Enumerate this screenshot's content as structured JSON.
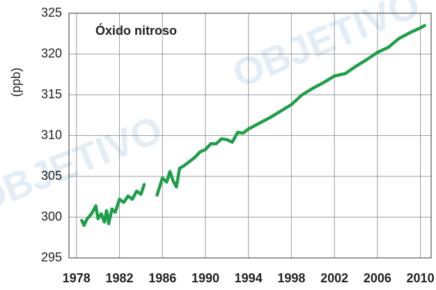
{
  "chart_data": {
    "type": "line",
    "title": "Óxido nitroso",
    "y_label": "(ppb)",
    "watermark": "OBJETIVO",
    "x": [
      1978.5,
      1978.7,
      1979.0,
      1979.4,
      1979.8,
      1980.0,
      1980.3,
      1980.6,
      1980.8,
      1981.0,
      1981.3,
      1981.6,
      1982.0,
      1982.4,
      1982.8,
      1983.2,
      1983.6,
      1984.0,
      1984.3,
      1985.0,
      1985.5,
      1986.0,
      1986.4,
      1986.7,
      1987.0,
      1987.3,
      1987.6,
      1988.0,
      1988.5,
      1989.0,
      1989.5,
      1990.0,
      1990.5,
      1991.0,
      1991.5,
      1992.0,
      1992.5,
      1993.0,
      1993.5,
      1994.0,
      1995.0,
      1996.0,
      1997.0,
      1998.0,
      1999.0,
      2000.0,
      2001.0,
      2002.0,
      2003.0,
      2004.0,
      2005.0,
      2006.0,
      2007.0,
      2008.0,
      2009.0,
      2010.0,
      2010.4
    ],
    "series": [
      {
        "name": "Óxido nitroso",
        "color": "#1f9e48",
        "values": [
          299.6,
          299.0,
          299.8,
          300.4,
          301.4,
          299.8,
          300.4,
          299.4,
          300.8,
          299.2,
          301.0,
          300.6,
          302.2,
          301.8,
          302.6,
          302.2,
          303.2,
          302.8,
          304.0,
          null,
          302.7,
          304.8,
          304.3,
          305.6,
          304.4,
          303.7,
          306.0,
          306.3,
          306.8,
          307.3,
          308.0,
          308.3,
          309.0,
          309.0,
          309.6,
          309.5,
          309.2,
          310.4,
          310.3,
          310.8,
          311.5,
          312.2,
          313.0,
          313.8,
          315.0,
          315.8,
          316.5,
          317.3,
          317.6,
          318.5,
          319.3,
          320.2,
          320.8,
          321.9,
          322.6,
          323.2,
          323.5
        ]
      }
    ],
    "xlim": [
      1977.3,
      2011
    ],
    "xticks": [
      1978,
      1982,
      1986,
      1990,
      1994,
      1998,
      2002,
      2006,
      2010
    ],
    "ylim": [
      295,
      325
    ],
    "yticks": [
      295,
      300,
      305,
      310,
      315,
      320,
      325
    ],
    "grid": true
  }
}
